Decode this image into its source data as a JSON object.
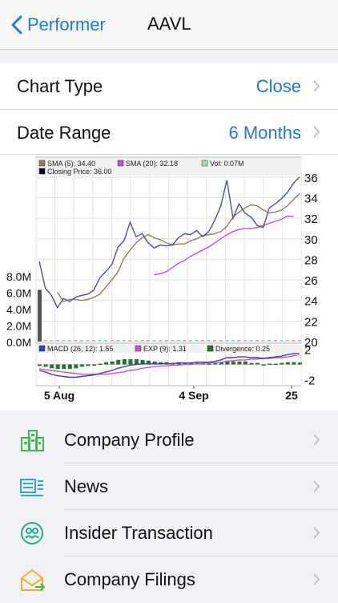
{
  "nav": {
    "back_label": "Performer",
    "title": "AAVL"
  },
  "settings": {
    "chart_type": {
      "label": "Chart Type",
      "value": "Close"
    },
    "date_range": {
      "label": "Date Range",
      "value": "6 Months"
    }
  },
  "legend": {
    "sma5": "SMA (5): 34.40",
    "sma20": "SMA (20): 32.18",
    "vol": "Vol: 0.07M",
    "closing": "Closing Price: 36.00"
  },
  "macd_legend": {
    "macd": "MACD (26, 12): 1.55",
    "exp": "EXP (9): 1.31",
    "divergence": "Divergence: 0.25"
  },
  "colors": {
    "accent": "#1a7ae0",
    "price": "#4a5496",
    "sma5": "#9a7a52",
    "sma20": "#c04be0",
    "volume": "#555555",
    "macd": "#3c3ccc",
    "exp": "#d24ae6",
    "divergence": "#1f7a1f"
  },
  "chart_data": {
    "type": "line",
    "x_tick_labels": [
      "5 Aug",
      "4 Sep",
      "25"
    ],
    "price_axis": {
      "ticks": [
        "36",
        "34",
        "32",
        "30",
        "28",
        "26",
        "24",
        "22",
        "20"
      ],
      "ylim": [
        20,
        37
      ]
    },
    "volume_axis": {
      "ticks": [
        "8.0M",
        "6.0M",
        "4.0M",
        "2.0M",
        "0.0M"
      ],
      "ylim": [
        0,
        8
      ]
    },
    "macd_axis": {
      "ticks": [
        "2",
        "-2"
      ],
      "ylim": [
        -2.5,
        2.5
      ]
    },
    "series": [
      {
        "name": "Closing Price",
        "values": [
          27.8,
          25.2,
          24.5,
          23.3,
          24.2,
          23.9,
          24.3,
          24.5,
          24.6,
          25.0,
          26.2,
          26.8,
          27.5,
          29.2,
          29.8,
          31.6,
          30.2,
          30.5,
          29.6,
          29.1,
          29.4,
          29.3,
          29.4,
          30.1,
          30.5,
          30.4,
          30.8,
          30.2,
          30.7,
          31.8,
          33.2,
          35.7,
          32.0,
          33.4,
          32.5,
          32.1,
          31.3,
          31.1,
          33.0,
          33.4,
          33.9,
          34.5,
          35.4,
          36.0
        ]
      },
      {
        "name": "SMA (5)",
        "start_index": 3,
        "values": [
          24.8,
          23.9,
          24.1,
          24.1,
          24.0,
          24.1,
          24.3,
          24.6,
          25.3,
          26.0,
          26.8,
          28.1,
          28.9,
          29.6,
          30.1,
          30.4,
          30.1,
          29.9,
          29.6,
          29.4,
          29.5,
          29.5,
          29.8,
          30.0,
          30.3,
          30.4,
          30.5,
          30.7,
          31.2,
          32.1,
          32.6,
          33.0,
          33.3,
          33.2,
          32.8,
          32.5,
          32.6,
          32.8,
          33.2,
          33.8,
          34.4
        ]
      },
      {
        "name": "SMA (20)",
        "start_index": 19,
        "values": [
          26.5,
          26.6,
          26.8,
          27.2,
          27.6,
          27.9,
          28.3,
          28.6,
          28.9,
          29.2,
          29.6,
          30.0,
          30.4,
          30.7,
          30.9,
          31.0,
          31.0,
          31.1,
          31.3,
          31.5,
          31.7,
          31.9,
          32.2,
          32.18
        ]
      },
      {
        "name": "Volume",
        "values": [
          6.3,
          0.1,
          0.2,
          0.0,
          0.1,
          0.0,
          0.1,
          0.0,
          0.1,
          0.0,
          0.1,
          0.1,
          0.0,
          0.1,
          0.0,
          0.1,
          0.0,
          0.2,
          0.1,
          0.0,
          0.1,
          0.0,
          0.1,
          0.0,
          0.1,
          0.1,
          0.0,
          0.1,
          0.0,
          0.1,
          0.1,
          0.2,
          0.1,
          0.0,
          0.1,
          0.0,
          0.1,
          0.0,
          0.1,
          0.1,
          0.0,
          0.1,
          0.0,
          0.07
        ]
      },
      {
        "name": "MACD (26, 12)",
        "values": [
          -0.8,
          -1.0,
          -1.3,
          -1.5,
          -1.6,
          -1.7,
          -1.7,
          -1.6,
          -1.5,
          -1.4,
          -1.2,
          -1.0,
          -0.8,
          -0.5,
          -0.3,
          -0.1,
          0.0,
          0.1,
          0.1,
          0.1,
          0.1,
          0.1,
          0.1,
          0.2,
          0.2,
          0.2,
          0.3,
          0.3,
          0.3,
          0.4,
          0.6,
          0.9,
          0.9,
          1.0,
          1.0,
          0.9,
          0.9,
          0.8,
          0.9,
          1.0,
          1.1,
          1.3,
          1.45,
          1.55
        ]
      },
      {
        "name": "EXP (9)",
        "values": [
          -0.6,
          -0.7,
          -0.8,
          -0.9,
          -1.0,
          -1.1,
          -1.2,
          -1.3,
          -1.3,
          -1.3,
          -1.3,
          -1.3,
          -1.2,
          -1.1,
          -1.0,
          -0.8,
          -0.7,
          -0.5,
          -0.4,
          -0.3,
          -0.2,
          -0.2,
          -0.1,
          -0.1,
          0.0,
          0.0,
          0.1,
          0.1,
          0.2,
          0.2,
          0.3,
          0.4,
          0.5,
          0.6,
          0.6,
          0.7,
          0.7,
          0.8,
          0.8,
          0.9,
          0.9,
          1.0,
          1.15,
          1.31
        ]
      },
      {
        "name": "Divergence",
        "values": [
          -0.2,
          -0.3,
          -0.5,
          -0.6,
          -0.6,
          -0.6,
          -0.5,
          -0.3,
          -0.2,
          -0.1,
          0.1,
          0.3,
          0.4,
          0.6,
          0.7,
          0.7,
          0.7,
          0.6,
          0.5,
          0.4,
          0.3,
          0.3,
          0.2,
          0.3,
          0.2,
          0.2,
          0.2,
          0.2,
          0.1,
          0.2,
          0.3,
          0.5,
          0.4,
          0.4,
          0.4,
          0.2,
          0.2,
          0.0,
          0.1,
          0.1,
          0.2,
          0.3,
          0.3,
          0.25
        ]
      }
    ]
  },
  "menu": [
    {
      "label": "Company Profile",
      "icon": "building-icon"
    },
    {
      "label": "News",
      "icon": "newspaper-icon"
    },
    {
      "label": "Insider Transaction",
      "icon": "people-cycle-icon"
    },
    {
      "label": "Company Filings",
      "icon": "envelope-icon"
    }
  ]
}
